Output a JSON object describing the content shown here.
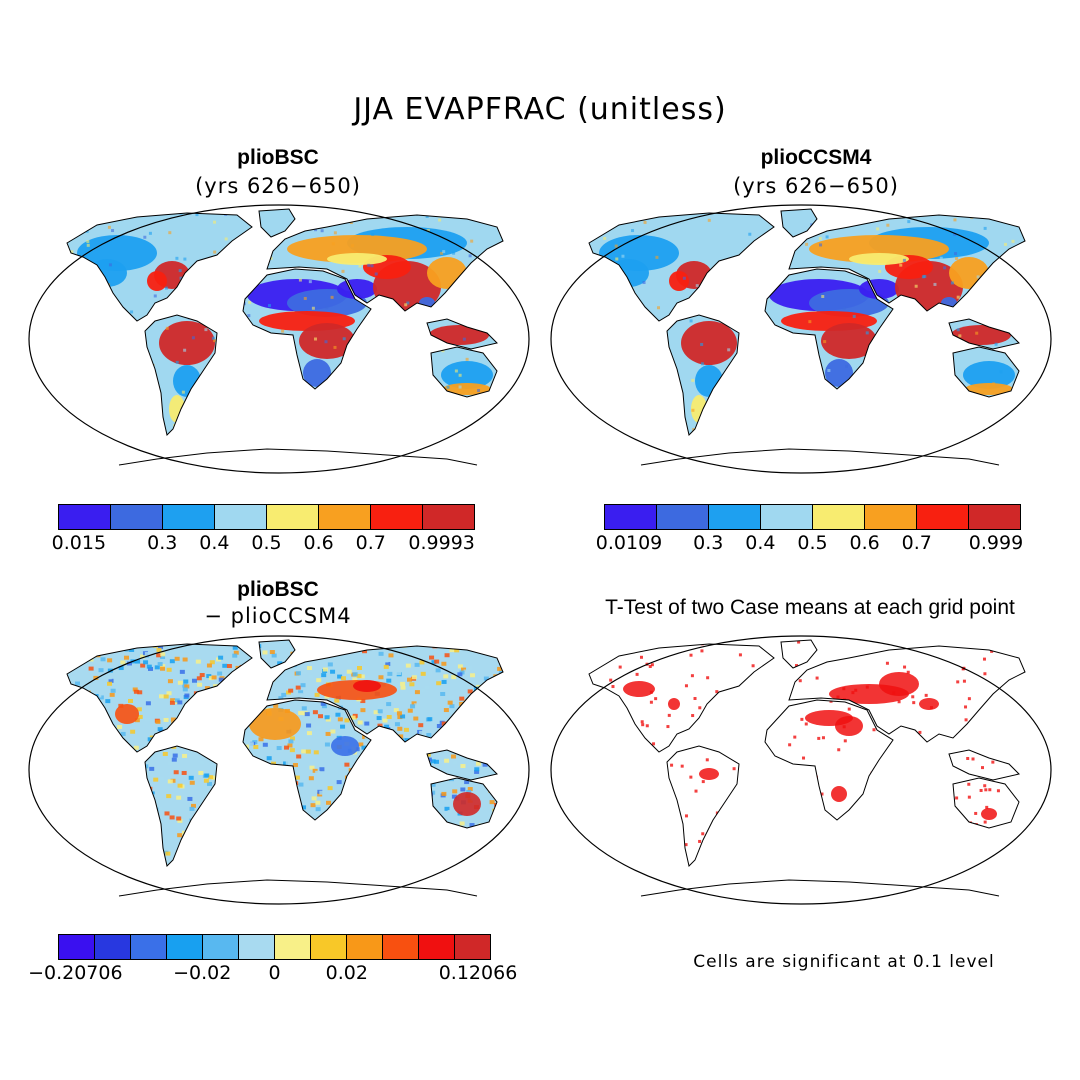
{
  "title": "JJA EVAPFRAC (unitless)",
  "panels": [
    {
      "title": "plioBSC",
      "subtitle": "(yrs 626−650)"
    },
    {
      "title": "plioCCSM4",
      "subtitle": "(yrs 626−650)"
    },
    {
      "title": "plioBSC",
      "subtitle": "− plioCCSM4"
    },
    {
      "title": "T-Test of two Case means at each grid point",
      "subtitle": ""
    }
  ],
  "colorbars": {
    "bsc": {
      "colors": [
        "#3a1ef0",
        "#3d6ae0",
        "#1ea0f0",
        "#a0d8f0",
        "#f8ec70",
        "#f8a020",
        "#f82010",
        "#d02828"
      ],
      "ticks": [
        "0.015",
        "0.3",
        "0.4",
        "0.5",
        "0.6",
        "0.7",
        "0.9993"
      ]
    },
    "ccsm4": {
      "colors": [
        "#3a1ef0",
        "#3d6ae0",
        "#1ea0f0",
        "#a0d8f0",
        "#f8ec70",
        "#f8a020",
        "#f82010",
        "#d02828"
      ],
      "ticks": [
        "0.0109",
        "0.3",
        "0.4",
        "0.5",
        "0.6",
        "0.7",
        "0.999"
      ]
    },
    "diff": {
      "colors": [
        "#3a10f0",
        "#2838e0",
        "#3a70e8",
        "#18a0f0",
        "#58b8f0",
        "#a8daf0",
        "#f8f088",
        "#f8c828",
        "#f89818",
        "#f85010",
        "#f01010",
        "#d02828"
      ],
      "ticks": [
        "−0.20706",
        "−0.02",
        "0",
        "0.02",
        "0.12066"
      ]
    }
  },
  "note": "Cells are significant at 0.1 level"
}
